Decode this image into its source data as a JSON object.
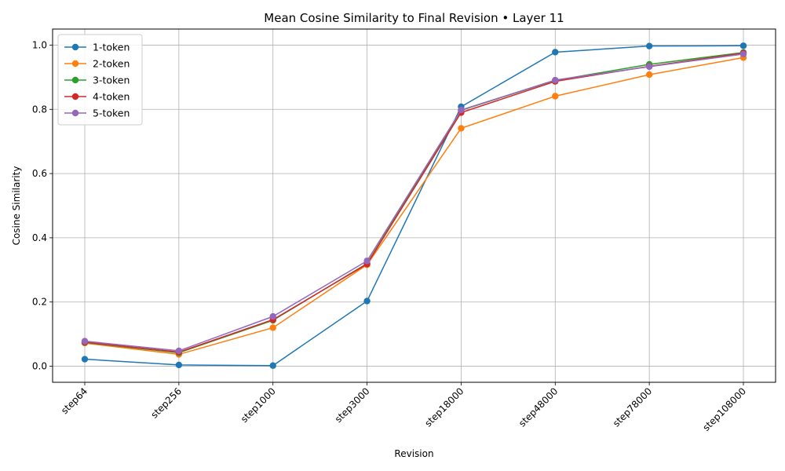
{
  "chart_data": {
    "type": "line",
    "title": "Mean Cosine Similarity to Final Revision • Layer 11",
    "xlabel": "Revision",
    "ylabel": "Cosine Similarity",
    "categories": [
      "step64",
      "step256",
      "step1000",
      "step3000",
      "step18000",
      "step48000",
      "step78000",
      "step108000"
    ],
    "ylim": [
      -0.05,
      1.05
    ],
    "yticks": [
      0.0,
      0.2,
      0.4,
      0.6,
      0.8,
      1.0
    ],
    "ytick_labels": [
      "0.0",
      "0.2",
      "0.4",
      "0.6",
      "0.8",
      "1.0"
    ],
    "grid": true,
    "legend_position": "top-left",
    "series": [
      {
        "name": "1-token",
        "color": "#1f77b4",
        "values": [
          0.022,
          0.004,
          0.002,
          0.203,
          0.808,
          0.978,
          0.997,
          0.998
        ]
      },
      {
        "name": "2-token",
        "color": "#ff7f0e",
        "values": [
          0.072,
          0.037,
          0.12,
          0.316,
          0.741,
          0.841,
          0.908,
          0.961
        ]
      },
      {
        "name": "3-token",
        "color": "#2ca02c",
        "values": [
          0.074,
          0.042,
          0.143,
          0.32,
          0.797,
          0.89,
          0.94,
          0.977
        ]
      },
      {
        "name": "4-token",
        "color": "#d62728",
        "values": [
          0.075,
          0.044,
          0.145,
          0.318,
          0.79,
          0.887,
          0.934,
          0.975
        ]
      },
      {
        "name": "5-token",
        "color": "#9467bd",
        "values": [
          0.078,
          0.048,
          0.155,
          0.328,
          0.798,
          0.891,
          0.933,
          0.972
        ]
      }
    ]
  }
}
